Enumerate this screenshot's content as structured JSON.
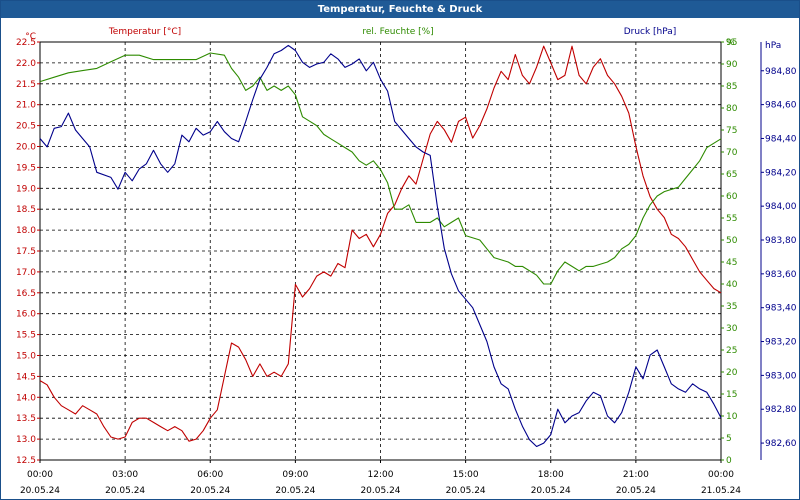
{
  "window": {
    "title": "Temperatur, Feuchte & Druck"
  },
  "chart_data": {
    "type": "line",
    "title": "Temperatur, Feuchte & Druck",
    "grid": true,
    "x_ticks": [
      {
        "time": "00:00",
        "date": "20.05.24"
      },
      {
        "time": "03:00",
        "date": "20.05.24"
      },
      {
        "time": "06:00",
        "date": "20.05.24"
      },
      {
        "time": "09:00",
        "date": "20.05.24"
      },
      {
        "time": "12:00",
        "date": "20.05.24"
      },
      {
        "time": "15:00",
        "date": "20.05.24"
      },
      {
        "time": "18:00",
        "date": "20.05.24"
      },
      {
        "time": "21:00",
        "date": "20.05.24"
      },
      {
        "time": "00:00",
        "date": "21.05.24"
      }
    ],
    "axes": {
      "temperature": {
        "label": "Temperatur [°C]",
        "unit": "°C",
        "min": 12.5,
        "max": 22.5,
        "step": 0.5,
        "color": "#c00000"
      },
      "humidity": {
        "label": "rel. Feuchte [%]",
        "unit": "%",
        "min": 0,
        "max": 95,
        "step": 5,
        "color": "#2e8b00"
      },
      "pressure": {
        "label": "Druck [hPa]",
        "unit": "hPa",
        "min": 982.5,
        "max": 984.97,
        "ticks": [
          "982,60",
          "982,80",
          "983,00",
          "983,20",
          "983,40",
          "983,60",
          "983,80",
          "984,00",
          "984,20",
          "984,40",
          "984,60",
          "984,80"
        ],
        "color": "#00008b"
      }
    },
    "series": [
      {
        "name": "Temperatur [°C]",
        "color": "#c00000",
        "points": [
          [
            0,
            14.4
          ],
          [
            0.25,
            14.3
          ],
          [
            0.5,
            14.0
          ],
          [
            0.75,
            13.8
          ],
          [
            1,
            13.7
          ],
          [
            1.25,
            13.6
          ],
          [
            1.5,
            13.8
          ],
          [
            1.75,
            13.7
          ],
          [
            2,
            13.6
          ],
          [
            2.25,
            13.3
          ],
          [
            2.5,
            13.05
          ],
          [
            2.75,
            13.0
          ],
          [
            3,
            13.05
          ],
          [
            3.25,
            13.4
          ],
          [
            3.5,
            13.5
          ],
          [
            3.75,
            13.5
          ],
          [
            4,
            13.4
          ],
          [
            4.25,
            13.3
          ],
          [
            4.5,
            13.2
          ],
          [
            4.75,
            13.3
          ],
          [
            5,
            13.2
          ],
          [
            5.25,
            12.95
          ],
          [
            5.5,
            13.0
          ],
          [
            5.75,
            13.2
          ],
          [
            6,
            13.5
          ],
          [
            6.25,
            13.7
          ],
          [
            6.5,
            14.5
          ],
          [
            6.75,
            15.3
          ],
          [
            7,
            15.2
          ],
          [
            7.25,
            14.9
          ],
          [
            7.5,
            14.5
          ],
          [
            7.75,
            14.8
          ],
          [
            8,
            14.5
          ],
          [
            8.25,
            14.6
          ],
          [
            8.5,
            14.5
          ],
          [
            8.75,
            14.8
          ],
          [
            9,
            16.7
          ],
          [
            9.25,
            16.4
          ],
          [
            9.5,
            16.6
          ],
          [
            9.75,
            16.9
          ],
          [
            10,
            17.0
          ],
          [
            10.25,
            16.9
          ],
          [
            10.5,
            17.2
          ],
          [
            10.75,
            17.1
          ],
          [
            11,
            18.0
          ],
          [
            11.25,
            17.8
          ],
          [
            11.5,
            17.9
          ],
          [
            11.75,
            17.6
          ],
          [
            12,
            17.9
          ],
          [
            12.25,
            18.4
          ],
          [
            12.5,
            18.6
          ],
          [
            12.75,
            19.0
          ],
          [
            13,
            19.3
          ],
          [
            13.25,
            19.1
          ],
          [
            13.5,
            19.7
          ],
          [
            13.75,
            20.3
          ],
          [
            14,
            20.6
          ],
          [
            14.25,
            20.4
          ],
          [
            14.5,
            20.1
          ],
          [
            14.75,
            20.6
          ],
          [
            15,
            20.7
          ],
          [
            15.25,
            20.2
          ],
          [
            15.5,
            20.5
          ],
          [
            15.75,
            20.9
          ],
          [
            16,
            21.4
          ],
          [
            16.25,
            21.8
          ],
          [
            16.5,
            21.6
          ],
          [
            16.75,
            22.2
          ],
          [
            17,
            21.7
          ],
          [
            17.25,
            21.5
          ],
          [
            17.5,
            21.9
          ],
          [
            17.75,
            22.4
          ],
          [
            18,
            22.0
          ],
          [
            18.25,
            21.6
          ],
          [
            18.5,
            21.7
          ],
          [
            18.75,
            22.4
          ],
          [
            19,
            21.7
          ],
          [
            19.25,
            21.5
          ],
          [
            19.5,
            21.9
          ],
          [
            19.75,
            22.1
          ],
          [
            20,
            21.7
          ],
          [
            20.25,
            21.5
          ],
          [
            20.5,
            21.2
          ],
          [
            20.75,
            20.8
          ],
          [
            21,
            20.0
          ],
          [
            21.25,
            19.3
          ],
          [
            21.5,
            18.8
          ],
          [
            21.75,
            18.5
          ],
          [
            22,
            18.3
          ],
          [
            22.25,
            17.9
          ],
          [
            22.5,
            17.8
          ],
          [
            22.75,
            17.6
          ],
          [
            23,
            17.3
          ],
          [
            23.25,
            17.0
          ],
          [
            23.5,
            16.8
          ],
          [
            23.75,
            16.6
          ],
          [
            24,
            16.5
          ]
        ]
      },
      {
        "name": "rel. Feuchte [%]",
        "color": "#2e8b00",
        "points": [
          [
            0,
            86
          ],
          [
            0.5,
            87
          ],
          [
            1,
            88
          ],
          [
            1.5,
            88.5
          ],
          [
            2,
            89
          ],
          [
            2.5,
            90.5
          ],
          [
            3,
            92
          ],
          [
            3.5,
            92
          ],
          [
            4,
            91
          ],
          [
            4.5,
            91
          ],
          [
            5,
            91
          ],
          [
            5.5,
            91
          ],
          [
            6,
            92.5
          ],
          [
            6.5,
            92
          ],
          [
            6.75,
            89
          ],
          [
            7,
            87
          ],
          [
            7.25,
            84
          ],
          [
            7.5,
            85
          ],
          [
            7.75,
            87
          ],
          [
            8,
            84
          ],
          [
            8.25,
            85
          ],
          [
            8.5,
            84
          ],
          [
            8.75,
            85
          ],
          [
            9,
            83
          ],
          [
            9.25,
            78
          ],
          [
            9.5,
            77
          ],
          [
            9.75,
            76
          ],
          [
            10,
            74
          ],
          [
            10.25,
            73
          ],
          [
            10.5,
            72
          ],
          [
            10.75,
            71
          ],
          [
            11,
            70
          ],
          [
            11.25,
            68
          ],
          [
            11.5,
            67
          ],
          [
            11.75,
            68
          ],
          [
            12,
            66
          ],
          [
            12.25,
            63
          ],
          [
            12.5,
            57
          ],
          [
            12.75,
            57
          ],
          [
            13,
            58
          ],
          [
            13.25,
            54
          ],
          [
            13.5,
            54
          ],
          [
            13.75,
            54
          ],
          [
            14,
            55
          ],
          [
            14.25,
            53
          ],
          [
            14.5,
            54
          ],
          [
            14.75,
            55
          ],
          [
            15,
            51
          ],
          [
            15.5,
            50
          ],
          [
            15.75,
            48
          ],
          [
            16,
            46
          ],
          [
            16.5,
            45
          ],
          [
            16.75,
            44
          ],
          [
            17,
            44
          ],
          [
            17.5,
            42
          ],
          [
            17.75,
            40
          ],
          [
            18,
            40
          ],
          [
            18.25,
            43
          ],
          [
            18.5,
            45
          ],
          [
            18.75,
            44
          ],
          [
            19,
            43
          ],
          [
            19.25,
            44
          ],
          [
            19.5,
            44
          ],
          [
            20,
            45
          ],
          [
            20.25,
            46
          ],
          [
            20.5,
            48
          ],
          [
            20.75,
            49
          ],
          [
            21,
            51
          ],
          [
            21.25,
            55
          ],
          [
            21.5,
            58
          ],
          [
            21.75,
            60
          ],
          [
            22,
            61
          ],
          [
            22.5,
            62
          ],
          [
            22.75,
            64
          ],
          [
            23,
            66
          ],
          [
            23.25,
            68
          ],
          [
            23.5,
            71
          ],
          [
            23.75,
            72
          ],
          [
            24,
            73
          ]
        ]
      },
      {
        "name": "Druck [hPa]",
        "color": "#00008b",
        "points": [
          [
            0,
            984.4
          ],
          [
            0.25,
            984.35
          ],
          [
            0.5,
            984.46
          ],
          [
            0.75,
            984.47
          ],
          [
            1,
            984.55
          ],
          [
            1.25,
            984.45
          ],
          [
            1.5,
            984.4
          ],
          [
            1.75,
            984.35
          ],
          [
            2,
            984.2
          ],
          [
            2.5,
            984.17
          ],
          [
            2.75,
            984.1
          ],
          [
            3,
            984.2
          ],
          [
            3.25,
            984.15
          ],
          [
            3.5,
            984.22
          ],
          [
            3.75,
            984.25
          ],
          [
            4,
            984.33
          ],
          [
            4.25,
            984.25
          ],
          [
            4.5,
            984.2
          ],
          [
            4.75,
            984.25
          ],
          [
            5,
            984.42
          ],
          [
            5.25,
            984.38
          ],
          [
            5.5,
            984.46
          ],
          [
            5.75,
            984.42
          ],
          [
            6,
            984.44
          ],
          [
            6.25,
            984.5
          ],
          [
            6.5,
            984.44
          ],
          [
            6.75,
            984.4
          ],
          [
            7,
            984.38
          ],
          [
            7.25,
            984.5
          ],
          [
            7.5,
            984.63
          ],
          [
            7.75,
            984.75
          ],
          [
            8,
            984.82
          ],
          [
            8.25,
            984.9
          ],
          [
            8.5,
            984.92
          ],
          [
            8.75,
            984.95
          ],
          [
            9,
            984.92
          ],
          [
            9.25,
            984.85
          ],
          [
            9.5,
            984.82
          ],
          [
            9.75,
            984.84
          ],
          [
            10,
            984.85
          ],
          [
            10.25,
            984.9
          ],
          [
            10.5,
            984.87
          ],
          [
            10.75,
            984.82
          ],
          [
            11,
            984.84
          ],
          [
            11.25,
            984.87
          ],
          [
            11.5,
            984.8
          ],
          [
            11.75,
            984.85
          ],
          [
            12,
            984.75
          ],
          [
            12.25,
            984.68
          ],
          [
            12.5,
            984.5
          ],
          [
            12.75,
            984.45
          ],
          [
            13,
            984.4
          ],
          [
            13.25,
            984.35
          ],
          [
            13.5,
            984.32
          ],
          [
            13.75,
            984.3
          ],
          [
            14,
            984.0
          ],
          [
            14.25,
            983.75
          ],
          [
            14.5,
            983.6
          ],
          [
            14.75,
            983.5
          ],
          [
            15,
            983.45
          ],
          [
            15.25,
            983.4
          ],
          [
            15.5,
            983.3
          ],
          [
            15.75,
            983.2
          ],
          [
            16,
            983.05
          ],
          [
            16.25,
            982.95
          ],
          [
            16.5,
            982.92
          ],
          [
            16.75,
            982.8
          ],
          [
            17,
            982.7
          ],
          [
            17.25,
            982.62
          ],
          [
            17.5,
            982.58
          ],
          [
            17.75,
            982.6
          ],
          [
            18,
            982.65
          ],
          [
            18.25,
            982.8
          ],
          [
            18.5,
            982.72
          ],
          [
            18.75,
            982.76
          ],
          [
            19,
            982.78
          ],
          [
            19.25,
            982.85
          ],
          [
            19.5,
            982.9
          ],
          [
            19.75,
            982.88
          ],
          [
            20,
            982.76
          ],
          [
            20.25,
            982.72
          ],
          [
            20.5,
            982.78
          ],
          [
            20.75,
            982.9
          ],
          [
            21,
            983.05
          ],
          [
            21.25,
            982.98
          ],
          [
            21.5,
            983.12
          ],
          [
            21.75,
            983.15
          ],
          [
            22,
            983.05
          ],
          [
            22.25,
            982.95
          ],
          [
            22.5,
            982.92
          ],
          [
            22.75,
            982.9
          ],
          [
            23,
            982.95
          ],
          [
            23.25,
            982.92
          ],
          [
            23.5,
            982.9
          ],
          [
            23.75,
            982.83
          ],
          [
            24,
            982.75
          ]
        ]
      }
    ]
  }
}
